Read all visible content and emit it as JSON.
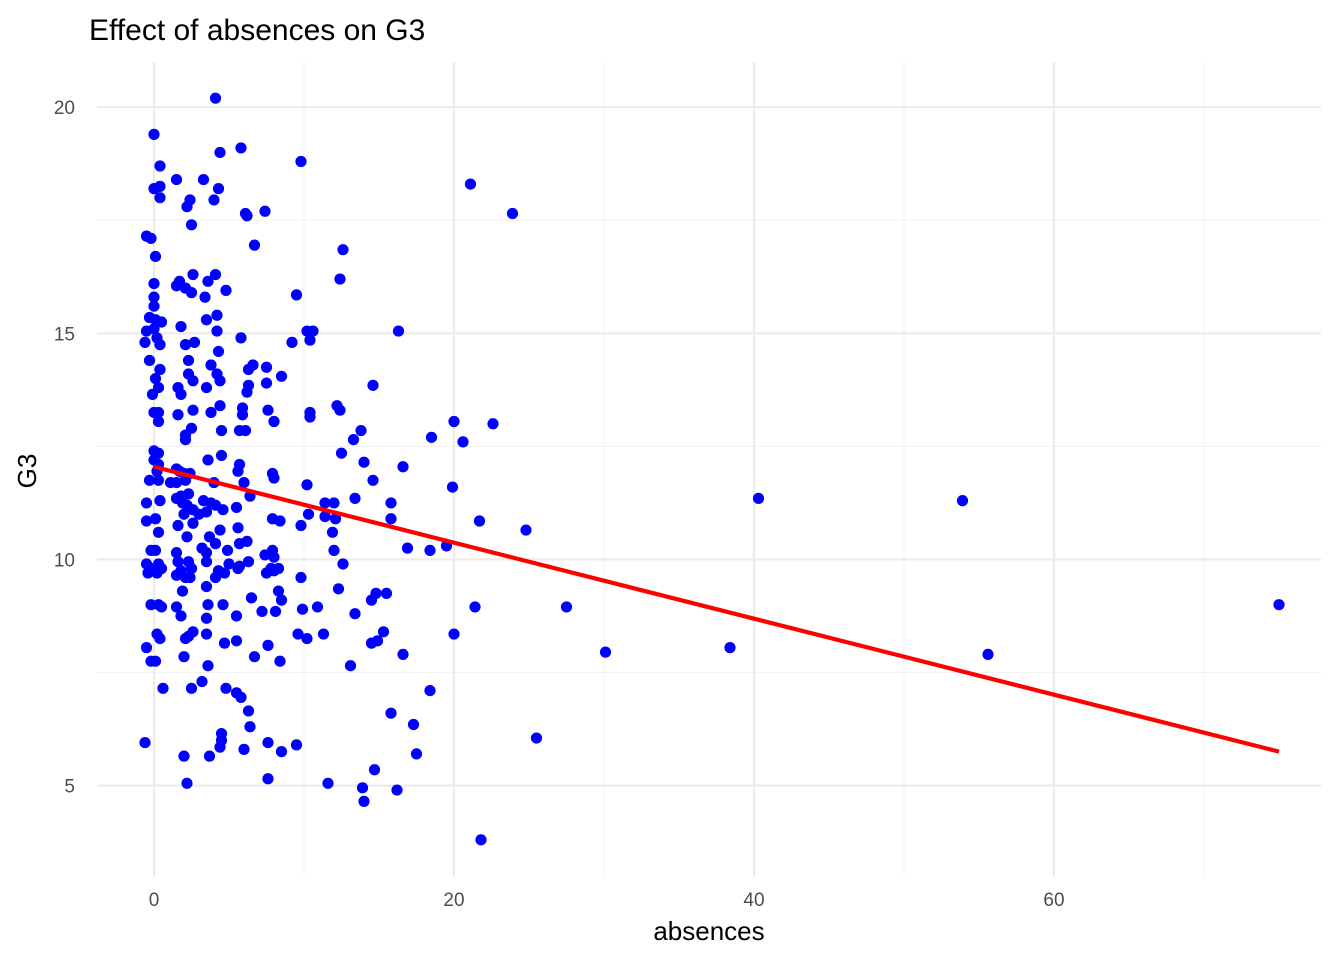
{
  "chart_data": {
    "type": "scatter",
    "title": "Effect of absences on G3",
    "xlabel": "absences",
    "ylabel": "G3",
    "xlim": [
      -3.8,
      77.8
    ],
    "ylim": [
      3.0,
      21.0
    ],
    "x_ticks": [
      0,
      20,
      40,
      60
    ],
    "x_tick_labels": [
      "0",
      "20",
      "40",
      "60"
    ],
    "y_ticks": [
      5,
      10,
      15,
      20
    ],
    "y_tick_labels": [
      "5",
      "10",
      "15",
      "20"
    ],
    "grid": true,
    "colors": {
      "points": "#0000ff",
      "fit_line": "#ff0000"
    },
    "fit_line": {
      "x": [
        0,
        75
      ],
      "y": [
        12.05,
        5.75
      ]
    },
    "points": [
      [
        -0.5,
        17.15
      ],
      [
        -0.2,
        17.1
      ],
      [
        0,
        19.4
      ],
      [
        0,
        18.2
      ],
      [
        0.4,
        18.25
      ],
      [
        0.4,
        18.7
      ],
      [
        0.4,
        18.0
      ],
      [
        0.1,
        16.7
      ],
      [
        0,
        16.1
      ],
      [
        0,
        15.8
      ],
      [
        0,
        15.6
      ],
      [
        -0.3,
        15.35
      ],
      [
        0.1,
        15.3
      ],
      [
        0.5,
        15.25
      ],
      [
        -0.5,
        15.05
      ],
      [
        0,
        15.1
      ],
      [
        0.2,
        14.9
      ],
      [
        -0.6,
        14.8
      ],
      [
        0.4,
        14.75
      ],
      [
        -0.3,
        14.4
      ],
      [
        0.4,
        14.2
      ],
      [
        0.1,
        14.0
      ],
      [
        0.3,
        13.8
      ],
      [
        -0.1,
        13.65
      ],
      [
        0,
        13.25
      ],
      [
        0.3,
        13.25
      ],
      [
        0.3,
        13.05
      ],
      [
        0,
        12.4
      ],
      [
        0.3,
        12.35
      ],
      [
        0,
        12.2
      ],
      [
        0.3,
        12.1
      ],
      [
        0.2,
        11.95
      ],
      [
        -0.3,
        11.75
      ],
      [
        0.3,
        11.75
      ],
      [
        -0.5,
        11.25
      ],
      [
        0.4,
        11.3
      ],
      [
        -0.5,
        10.85
      ],
      [
        0.1,
        10.9
      ],
      [
        0.3,
        10.6
      ],
      [
        -0.2,
        10.2
      ],
      [
        0.1,
        10.2
      ],
      [
        0.3,
        9.9
      ],
      [
        -0.5,
        9.9
      ],
      [
        0,
        9.8
      ],
      [
        -0.4,
        9.7
      ],
      [
        0.2,
        9.7
      ],
      [
        0.5,
        9.8
      ],
      [
        -0.2,
        9.0
      ],
      [
        0.3,
        9.0
      ],
      [
        0.5,
        8.95
      ],
      [
        0.2,
        8.35
      ],
      [
        0.4,
        8.25
      ],
      [
        -0.5,
        8.05
      ],
      [
        -0.2,
        7.75
      ],
      [
        0.1,
        7.75
      ],
      [
        0.6,
        7.15
      ],
      [
        -0.6,
        5.95
      ],
      [
        1.5,
        18.4
      ],
      [
        2.2,
        17.8
      ],
      [
        2.4,
        17.95
      ],
      [
        2.5,
        17.4
      ],
      [
        1.5,
        16.05
      ],
      [
        1.7,
        16.15
      ],
      [
        2.1,
        16.0
      ],
      [
        2.6,
        16.3
      ],
      [
        2.5,
        15.9
      ],
      [
        1.8,
        15.15
      ],
      [
        2.1,
        14.75
      ],
      [
        2.7,
        14.8
      ],
      [
        2.3,
        14.4
      ],
      [
        2.3,
        14.1
      ],
      [
        2.6,
        13.95
      ],
      [
        1.6,
        13.8
      ],
      [
        1.8,
        13.65
      ],
      [
        2.6,
        13.3
      ],
      [
        1.6,
        13.2
      ],
      [
        2.5,
        12.9
      ],
      [
        2.1,
        12.75
      ],
      [
        2.1,
        12.65
      ],
      [
        1.5,
        12.0
      ],
      [
        1.7,
        11.95
      ],
      [
        2.0,
        11.9
      ],
      [
        2.4,
        11.9
      ],
      [
        2.1,
        11.75
      ],
      [
        1.5,
        11.7
      ],
      [
        1.1,
        11.7
      ],
      [
        1.8,
        11.4
      ],
      [
        2.3,
        11.45
      ],
      [
        1.5,
        11.35
      ],
      [
        1.9,
        11.25
      ],
      [
        2.2,
        11.2
      ],
      [
        2.6,
        11.1
      ],
      [
        2.0,
        11.0
      ],
      [
        1.6,
        10.75
      ],
      [
        2.6,
        10.8
      ],
      [
        2.2,
        10.5
      ],
      [
        1.5,
        10.15
      ],
      [
        1.6,
        9.95
      ],
      [
        2.3,
        9.95
      ],
      [
        1.8,
        9.75
      ],
      [
        1.5,
        9.65
      ],
      [
        2.1,
        9.6
      ],
      [
        2.4,
        9.6
      ],
      [
        2.5,
        9.8
      ],
      [
        1.9,
        9.3
      ],
      [
        1.5,
        8.95
      ],
      [
        1.8,
        8.75
      ],
      [
        2.1,
        8.25
      ],
      [
        2.3,
        8.3
      ],
      [
        2.6,
        8.4
      ],
      [
        2.0,
        7.85
      ],
      [
        2.5,
        7.15
      ],
      [
        2.0,
        5.65
      ],
      [
        2.2,
        5.05
      ],
      [
        3.3,
        18.4
      ],
      [
        4.1,
        20.2
      ],
      [
        4.3,
        18.2
      ],
      [
        4.4,
        19.0
      ],
      [
        4.0,
        17.95
      ],
      [
        5.8,
        19.1
      ],
      [
        6.1,
        17.65
      ],
      [
        6.2,
        17.6
      ],
      [
        7.4,
        17.7
      ],
      [
        6.7,
        16.95
      ],
      [
        4.1,
        16.3
      ],
      [
        3.6,
        16.15
      ],
      [
        4.8,
        15.95
      ],
      [
        3.4,
        15.8
      ],
      [
        4.2,
        15.4
      ],
      [
        3.5,
        15.3
      ],
      [
        5.8,
        14.9
      ],
      [
        4.2,
        15.05
      ],
      [
        4.3,
        14.6
      ],
      [
        3.8,
        14.3
      ],
      [
        4.2,
        14.1
      ],
      [
        4.4,
        13.95
      ],
      [
        3.5,
        13.8
      ],
      [
        6.3,
        14.2
      ],
      [
        6.6,
        14.3
      ],
      [
        7.5,
        14.25
      ],
      [
        6.3,
        13.85
      ],
      [
        7.5,
        13.9
      ],
      [
        8.5,
        14.05
      ],
      [
        6.2,
        13.7
      ],
      [
        4.4,
        13.4
      ],
      [
        5.9,
        13.35
      ],
      [
        3.8,
        13.25
      ],
      [
        5.9,
        13.2
      ],
      [
        7.6,
        13.3
      ],
      [
        5.7,
        12.85
      ],
      [
        6.1,
        12.85
      ],
      [
        4.5,
        12.85
      ],
      [
        8.0,
        13.05
      ],
      [
        3.6,
        12.2
      ],
      [
        4.5,
        12.3
      ],
      [
        5.7,
        12.1
      ],
      [
        5.6,
        11.95
      ],
      [
        6.0,
        11.7
      ],
      [
        4.0,
        11.7
      ],
      [
        3.3,
        11.3
      ],
      [
        3.8,
        11.25
      ],
      [
        4.1,
        11.2
      ],
      [
        3.5,
        11.05
      ],
      [
        3.0,
        11.0
      ],
      [
        4.6,
        11.1
      ],
      [
        5.5,
        11.15
      ],
      [
        6.4,
        11.4
      ],
      [
        7.9,
        11.9
      ],
      [
        8.0,
        11.8
      ],
      [
        8.4,
        10.85
      ],
      [
        7.9,
        10.9
      ],
      [
        4.4,
        10.65
      ],
      [
        5.6,
        10.7
      ],
      [
        3.7,
        10.5
      ],
      [
        3.2,
        10.25
      ],
      [
        4.1,
        10.35
      ],
      [
        5.7,
        10.35
      ],
      [
        6.2,
        10.4
      ],
      [
        3.5,
        10.15
      ],
      [
        4.9,
        10.2
      ],
      [
        7.4,
        10.1
      ],
      [
        7.9,
        10.2
      ],
      [
        8.0,
        10.05
      ],
      [
        3.5,
        9.95
      ],
      [
        5.0,
        9.9
      ],
      [
        5.7,
        9.85
      ],
      [
        6.3,
        9.95
      ],
      [
        4.3,
        9.75
      ],
      [
        4.7,
        9.7
      ],
      [
        5.6,
        9.8
      ],
      [
        4.1,
        9.6
      ],
      [
        3.5,
        9.4
      ],
      [
        7.8,
        9.8
      ],
      [
        8.0,
        9.75
      ],
      [
        8.3,
        9.8
      ],
      [
        7.5,
        9.7
      ],
      [
        6.5,
        9.15
      ],
      [
        3.6,
        9.0
      ],
      [
        4.6,
        9.0
      ],
      [
        8.5,
        9.1
      ],
      [
        8.3,
        9.3
      ],
      [
        7.2,
        8.85
      ],
      [
        8.1,
        8.85
      ],
      [
        3.5,
        8.7
      ],
      [
        5.5,
        8.75
      ],
      [
        3.5,
        8.35
      ],
      [
        4.7,
        8.15
      ],
      [
        5.5,
        8.2
      ],
      [
        7.6,
        8.1
      ],
      [
        6.7,
        7.85
      ],
      [
        8.4,
        7.75
      ],
      [
        3.6,
        7.65
      ],
      [
        3.2,
        7.3
      ],
      [
        4.8,
        7.15
      ],
      [
        5.5,
        7.05
      ],
      [
        5.8,
        6.95
      ],
      [
        6.3,
        6.65
      ],
      [
        6.4,
        6.3
      ],
      [
        4.5,
        6.15
      ],
      [
        4.5,
        6.0
      ],
      [
        4.4,
        5.85
      ],
      [
        3.7,
        5.65
      ],
      [
        6.0,
        5.8
      ],
      [
        7.6,
        5.95
      ],
      [
        8.5,
        5.75
      ],
      [
        7.6,
        5.15
      ],
      [
        9.8,
        18.8
      ],
      [
        9.5,
        15.85
      ],
      [
        10.2,
        15.05
      ],
      [
        10.6,
        15.05
      ],
      [
        10.4,
        14.85
      ],
      [
        9.2,
        14.8
      ],
      [
        10.4,
        13.25
      ],
      [
        10.4,
        13.15
      ],
      [
        12.2,
        13.4
      ],
      [
        12.4,
        13.3
      ],
      [
        12.6,
        16.85
      ],
      [
        12.4,
        16.2
      ],
      [
        13.8,
        12.85
      ],
      [
        13.3,
        12.65
      ],
      [
        12.5,
        12.35
      ],
      [
        14.0,
        12.15
      ],
      [
        14.6,
        11.75
      ],
      [
        16.6,
        12.05
      ],
      [
        10.2,
        11.65
      ],
      [
        10.3,
        11.0
      ],
      [
        11.4,
        11.25
      ],
      [
        12.0,
        11.25
      ],
      [
        11.4,
        10.95
      ],
      [
        12.1,
        10.9
      ],
      [
        9.8,
        10.75
      ],
      [
        11.9,
        10.6
      ],
      [
        13.4,
        11.35
      ],
      [
        15.8,
        11.25
      ],
      [
        15.8,
        10.9
      ],
      [
        12.0,
        10.2
      ],
      [
        9.8,
        9.6
      ],
      [
        12.6,
        9.9
      ],
      [
        12.3,
        9.35
      ],
      [
        10.9,
        8.95
      ],
      [
        9.9,
        8.9
      ],
      [
        13.4,
        8.8
      ],
      [
        14.5,
        9.1
      ],
      [
        14.8,
        9.25
      ],
      [
        15.5,
        9.25
      ],
      [
        14.5,
        8.15
      ],
      [
        14.9,
        8.2
      ],
      [
        15.3,
        8.4
      ],
      [
        9.6,
        8.35
      ],
      [
        10.2,
        8.25
      ],
      [
        11.3,
        8.35
      ],
      [
        13.1,
        7.65
      ],
      [
        16.6,
        7.9
      ],
      [
        15.8,
        6.6
      ],
      [
        17.3,
        6.35
      ],
      [
        17.5,
        5.7
      ],
      [
        9.5,
        5.9
      ],
      [
        11.6,
        5.05
      ],
      [
        13.9,
        4.95
      ],
      [
        14.0,
        4.65
      ],
      [
        14.7,
        5.35
      ],
      [
        16.2,
        4.9
      ],
      [
        16.3,
        15.05
      ],
      [
        14.6,
        13.85
      ],
      [
        16.9,
        10.25
      ],
      [
        18.5,
        12.7
      ],
      [
        18.4,
        10.2
      ],
      [
        19.5,
        10.3
      ],
      [
        20.0,
        13.05
      ],
      [
        20.6,
        12.6
      ],
      [
        19.9,
        11.6
      ],
      [
        18.4,
        7.1
      ],
      [
        20.0,
        8.35
      ],
      [
        21.1,
        18.3
      ],
      [
        23.9,
        17.65
      ],
      [
        22.6,
        13.0
      ],
      [
        21.7,
        10.85
      ],
      [
        21.4,
        8.95
      ],
      [
        24.8,
        10.65
      ],
      [
        25.5,
        6.05
      ],
      [
        21.8,
        3.8
      ],
      [
        27.5,
        8.95
      ],
      [
        30.1,
        7.95
      ],
      [
        38.4,
        8.05
      ],
      [
        40.3,
        11.35
      ],
      [
        53.9,
        11.3
      ],
      [
        55.6,
        7.9
      ],
      [
        75.0,
        9.0
      ]
    ]
  }
}
